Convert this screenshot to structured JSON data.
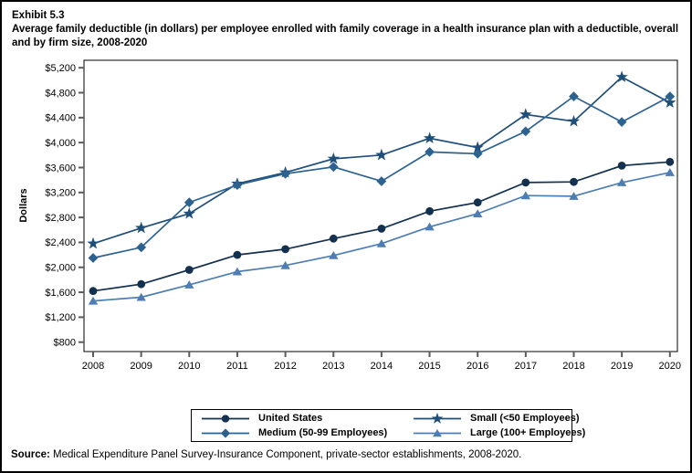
{
  "header": {
    "exhibit": "Exhibit 5.3",
    "title": "Average family deductible (in dollars) per employee enrolled with family coverage in a health insurance plan with a deductible, overall and by firm size, 2008-2020"
  },
  "chart_data": {
    "type": "line",
    "x": [
      2008,
      2009,
      2010,
      2011,
      2012,
      2013,
      2014,
      2015,
      2016,
      2017,
      2018,
      2019,
      2020
    ],
    "xlabel": "",
    "ylabel": "Dollars",
    "ylim": [
      800,
      5200
    ],
    "ytick_step": 400,
    "ytick_format": "dollar",
    "grid": false,
    "legend_position": "bottom",
    "series": [
      {
        "name": "United States",
        "marker": "circle",
        "color": "#14304f",
        "values": [
          1620,
          1730,
          1960,
          2200,
          2290,
          2460,
          2620,
          2900,
          3040,
          3360,
          3370,
          3630,
          3690
        ]
      },
      {
        "name": "Medium (50-99 Employees)",
        "marker": "diamond",
        "color": "#2d6290",
        "values": [
          2150,
          2320,
          3040,
          3320,
          3500,
          3610,
          3380,
          3850,
          3820,
          4180,
          4740,
          4330,
          4740
        ]
      },
      {
        "name": "Small (<50 Employees)",
        "marker": "star",
        "color": "#1f4e79",
        "values": [
          2380,
          2630,
          2860,
          3340,
          3520,
          3740,
          3800,
          4070,
          3920,
          4450,
          4340,
          5050,
          4640
        ]
      },
      {
        "name": "Large (100+ Employees)",
        "marker": "triangle",
        "color": "#4d7db3",
        "values": [
          1460,
          1520,
          1720,
          1930,
          2030,
          2190,
          2380,
          2650,
          2860,
          3150,
          3140,
          3360,
          3520
        ]
      }
    ]
  },
  "source": {
    "label": "Source:",
    "text": " Medical Expenditure Panel Survey-Insurance Component, private-sector establishments, 2008-2020."
  }
}
